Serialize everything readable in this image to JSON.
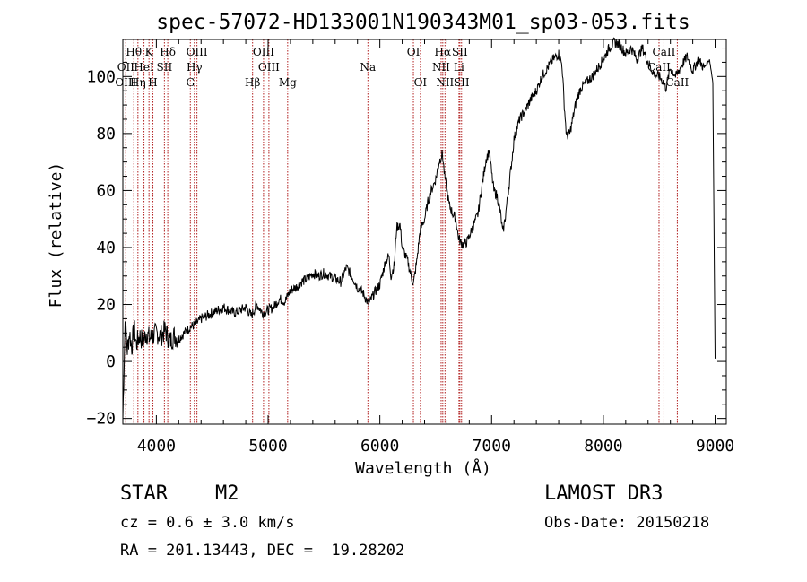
{
  "chart_data": {
    "type": "line",
    "title": "spec-57072-HD133001N190343M01_sp03-053.fits",
    "xlabel": "Wavelength (Å)",
    "ylabel": "Flux (relative)",
    "xlim": [
      3700,
      9100
    ],
    "ylim": [
      -22,
      113
    ],
    "xticks": [
      4000,
      5000,
      6000,
      7000,
      8000,
      9000
    ],
    "yticks": [
      -20,
      0,
      20,
      40,
      60,
      80,
      100
    ],
    "grid": false,
    "series": [
      {
        "name": "flux",
        "x": [
          3700,
          3720,
          3740,
          3760,
          3780,
          3800,
          3820,
          3850,
          3880,
          3910,
          3940,
          3970,
          4000,
          4040,
          4080,
          4120,
          4160,
          4200,
          4250,
          4300,
          4350,
          4400,
          4450,
          4500,
          4550,
          4600,
          4650,
          4700,
          4750,
          4800,
          4850,
          4900,
          4950,
          5000,
          5050,
          5100,
          5150,
          5200,
          5250,
          5300,
          5350,
          5400,
          5450,
          5500,
          5550,
          5600,
          5650,
          5700,
          5750,
          5800,
          5850,
          5900,
          5950,
          6000,
          6050,
          6080,
          6100,
          6130,
          6150,
          6180,
          6200,
          6250,
          6280,
          6300,
          6330,
          6360,
          6400,
          6430,
          6460,
          6500,
          6530,
          6560,
          6580,
          6600,
          6620,
          6650,
          6680,
          6700,
          6720,
          6750,
          6780,
          6800,
          6850,
          6880,
          6900,
          6920,
          6950,
          6980,
          7000,
          7020,
          7050,
          7080,
          7100,
          7120,
          7150,
          7180,
          7200,
          7250,
          7300,
          7350,
          7400,
          7450,
          7500,
          7550,
          7600,
          7630,
          7650,
          7670,
          7700,
          7730,
          7760,
          7800,
          7850,
          7900,
          7950,
          8000,
          8050,
          8100,
          8150,
          8200,
          8250,
          8300,
          8350,
          8400,
          8450,
          8500,
          8540,
          8560,
          8600,
          8650,
          8700,
          8750,
          8800,
          8850,
          8900,
          8950,
          8980,
          9000
        ],
        "values": [
          -20,
          14,
          4,
          10,
          5,
          12,
          6,
          9,
          7,
          10,
          8,
          9,
          10,
          9,
          11,
          7,
          9,
          8,
          10,
          12,
          13,
          15,
          16,
          17,
          18,
          19,
          18,
          17,
          18,
          19,
          16,
          20,
          17,
          18,
          19,
          22,
          21,
          25,
          26,
          28,
          29,
          31,
          30,
          31,
          30,
          29,
          28,
          33,
          30,
          26,
          24,
          20,
          24,
          27,
          35,
          37,
          30,
          34,
          47,
          48,
          40,
          35,
          30,
          27,
          35,
          46,
          50,
          56,
          60,
          64,
          70,
          73,
          65,
          60,
          55,
          52,
          50,
          44,
          42,
          41,
          42,
          44,
          49,
          52,
          58,
          63,
          71,
          74,
          66,
          60,
          58,
          52,
          45,
          50,
          60,
          70,
          78,
          85,
          88,
          92,
          95,
          100,
          103,
          106,
          108,
          104,
          90,
          79,
          80,
          86,
          92,
          96,
          98,
          100,
          103,
          106,
          110,
          112,
          111,
          108,
          110,
          106,
          110,
          105,
          101,
          100,
          98,
          96,
          103,
          100,
          104,
          107,
          102,
          106,
          103,
          106,
          98,
          1
        ]
      }
    ],
    "line_markers": [
      {
        "label": "Hθ",
        "wavelength": 3798,
        "row": 0
      },
      {
        "label": "OII",
        "wavelength": 3727,
        "row": 1
      },
      {
        "label": "OIII",
        "wavelength": 3727,
        "row": 2
      },
      {
        "label": "K",
        "wavelength": 3934,
        "row": 0
      },
      {
        "label": "HeI",
        "wavelength": 3889,
        "row": 1
      },
      {
        "label": "Hη",
        "wavelength": 3835,
        "row": 2
      },
      {
        "label": "Hδ",
        "wavelength": 4102,
        "row": 0
      },
      {
        "label": "SII",
        "wavelength": 4072,
        "row": 1
      },
      {
        "label": "H",
        "wavelength": 3969,
        "row": 2
      },
      {
        "label": "OIII",
        "wavelength": 4363,
        "row": 0
      },
      {
        "label": "Hγ",
        "wavelength": 4340,
        "row": 1
      },
      {
        "label": "G",
        "wavelength": 4304,
        "row": 2
      },
      {
        "label": "OIII",
        "wavelength": 4959,
        "row": 0
      },
      {
        "label": "OIII",
        "wavelength": 5007,
        "row": 1
      },
      {
        "label": "Hβ",
        "wavelength": 4861,
        "row": 2
      },
      {
        "label": "Mg",
        "wavelength": 5175,
        "row": 2
      },
      {
        "label": "Na",
        "wavelength": 5893,
        "row": 1
      },
      {
        "label": "OI",
        "wavelength": 6300,
        "row": 0
      },
      {
        "label": "OI",
        "wavelength": 6363,
        "row": 2
      },
      {
        "label": "Hα",
        "wavelength": 6563,
        "row": 0
      },
      {
        "label": "SII",
        "wavelength": 6716,
        "row": 0
      },
      {
        "label": "NII",
        "wavelength": 6548,
        "row": 1
      },
      {
        "label": "Li",
        "wavelength": 6708,
        "row": 1
      },
      {
        "label": "NII",
        "wavelength": 6583,
        "row": 2
      },
      {
        "label": "SII",
        "wavelength": 6731,
        "row": 2
      },
      {
        "label": "CaII",
        "wavelength": 8542,
        "row": 0
      },
      {
        "label": "CaII",
        "wavelength": 8498,
        "row": 1
      },
      {
        "label": "CaII",
        "wavelength": 8662,
        "row": 2
      }
    ],
    "line_color": "#000000",
    "marker_color": "#b22222"
  },
  "info": {
    "spec_type": "STAR    M2",
    "survey": "LAMOST DR3",
    "cz": "cz = 0.6 ± 3.0 km/s",
    "obs_date": "Obs-Date: 20150218",
    "radec": "RA = 201.13443, DEC =  19.28202"
  }
}
